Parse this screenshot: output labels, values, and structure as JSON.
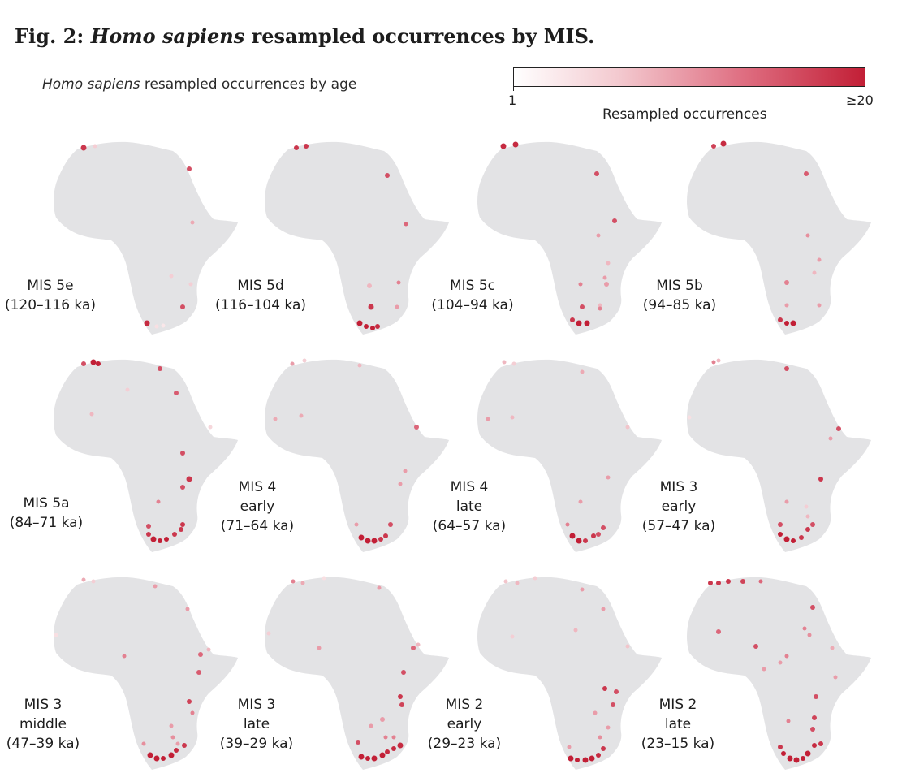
{
  "figure": {
    "prefix": "Fig. 2:",
    "species": "Homo sapiens",
    "rest": "resampled occurrences by MIS."
  },
  "subtitle": {
    "species": "Homo sapiens",
    "rest": "resampled occurrences by age"
  },
  "colorbar": {
    "min_label": "1",
    "max_label": "≥20",
    "label": "Resampled occurrences",
    "colors": [
      "#ffffff",
      "#f3c9cf",
      "#df6f82",
      "#c21f36"
    ]
  },
  "landmass_color": "#e3e3e5",
  "panels": [
    {
      "lines": [
        "MIS 5e",
        "(120–116 ka)"
      ]
    },
    {
      "lines": [
        "MIS 5d",
        "(116–104 ka)"
      ]
    },
    {
      "lines": [
        "MIS 5c",
        "(104–94 ka)"
      ]
    },
    {
      "lines": [
        "MIS 5b",
        "(94–85 ka)"
      ]
    },
    {
      "lines": [
        "MIS 5a",
        "(84–71 ka)"
      ]
    },
    {
      "lines": [
        "MIS 4",
        "early",
        "(71–64 ka)"
      ]
    },
    {
      "lines": [
        "MIS 4",
        "late",
        "(64–57 ka)"
      ]
    },
    {
      "lines": [
        "MIS 3",
        "early",
        "(57–47 ka)"
      ]
    },
    {
      "lines": [
        "MIS 3",
        "middle",
        "(47–39 ka)"
      ]
    },
    {
      "lines": [
        "MIS 3",
        "late",
        "(39–29 ka)"
      ]
    },
    {
      "lines": [
        "MIS 2",
        "early",
        "(29–23 ka)"
      ]
    },
    {
      "lines": [
        "MIS 2",
        "late",
        "(23–15 ka)"
      ]
    }
  ]
}
